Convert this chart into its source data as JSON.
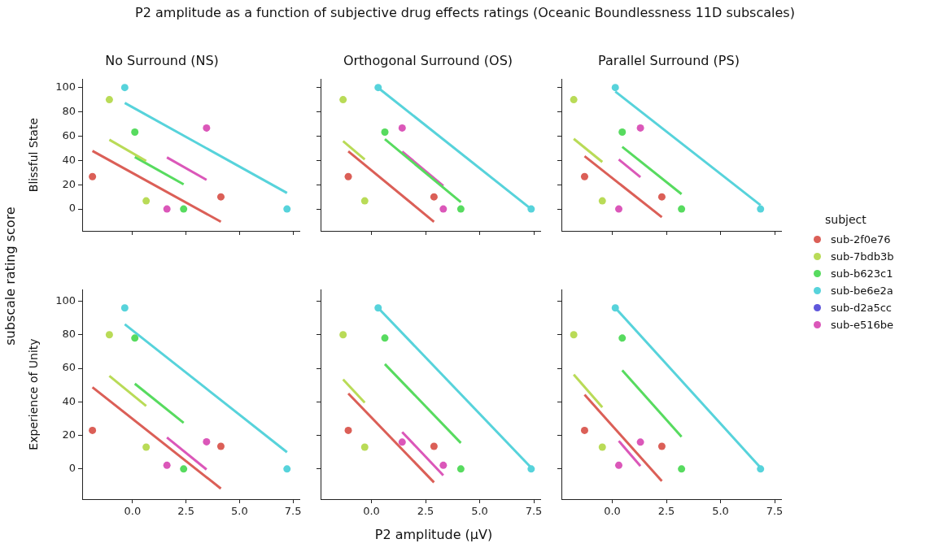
{
  "chart_data": [
    {
      "type": "scatter",
      "title": "No Surround (NS)",
      "ylabel": "Blissful State",
      "annotations": [
        "subscale rating score"
      ],
      "xlim": [
        -2.35,
        7.8
      ],
      "ylim": [
        -18,
        107
      ],
      "xticks": [
        0,
        2.5,
        5,
        7.5
      ],
      "yticks": [
        0,
        20,
        40,
        60,
        80,
        100
      ],
      "tick_labels": "y",
      "grid": false,
      "marker": "circle",
      "series": [
        {
          "color": "#db5f57",
          "x": [
            -1.87,
            4.13
          ],
          "values": [
            26.7,
            10
          ]
        },
        {
          "color": "#b9db57",
          "x": [
            -1.08,
            0.64
          ],
          "values": [
            90,
            6.7
          ]
        },
        {
          "color": "#57db5f",
          "x": [
            0.11,
            2.39
          ],
          "values": [
            63.3,
            0
          ]
        },
        {
          "color": "#57d3db",
          "x": [
            -0.36,
            7.22
          ],
          "values": [
            100,
            0
          ]
        },
        {
          "color": "#db57b9",
          "x": [
            1.61,
            3.46
          ],
          "values": [
            0,
            66.7
          ]
        },
        {
          "type": "line",
          "marker": "none",
          "color": "#db5f57",
          "x": [
            -1.87,
            4.13
          ],
          "values": [
            47.8,
            -10.5
          ]
        },
        {
          "type": "line",
          "marker": "none",
          "color": "#b9db57",
          "x": [
            -1.08,
            0.64
          ],
          "values": [
            57,
            39.5
          ]
        },
        {
          "type": "line",
          "marker": "none",
          "color": "#57db5f",
          "x": [
            0.11,
            2.39
          ],
          "values": [
            42.8,
            20.3
          ]
        },
        {
          "type": "line",
          "marker": "none",
          "color": "#57d3db",
          "x": [
            -0.36,
            7.22
          ],
          "values": [
            87.3,
            13.2
          ]
        },
        {
          "type": "line",
          "marker": "none",
          "color": "#db57b9",
          "x": [
            1.61,
            3.46
          ],
          "values": [
            42.5,
            24
          ]
        }
      ]
    },
    {
      "type": "scatter",
      "title": "Orthogonal Surround (OS)",
      "annotations": [
        "P2 amplitude as a function of subjective drug effects ratings (Oceanic Boundlessness 11D subscales)"
      ],
      "xlim": [
        -2.35,
        7.8
      ],
      "ylim": [
        -18,
        107
      ],
      "xticks": [
        0,
        2.5,
        5,
        7.5
      ],
      "yticks": [
        0,
        20,
        40,
        60,
        80,
        100
      ],
      "tick_labels": false,
      "grid": false,
      "marker": "circle",
      "series": [
        {
          "color": "#db5f57",
          "x": [
            -1.07,
            2.89
          ],
          "values": [
            26.7,
            10
          ]
        },
        {
          "color": "#b9db57",
          "x": [
            -1.31,
            -0.31
          ],
          "values": [
            90,
            6.7
          ]
        },
        {
          "color": "#57db5f",
          "x": [
            0.62,
            4.13
          ],
          "values": [
            63.3,
            0
          ]
        },
        {
          "color": "#57d3db",
          "x": [
            0.31,
            7.38
          ],
          "values": [
            100,
            0
          ]
        },
        {
          "color": "#db57b9",
          "x": [
            1.42,
            3.32
          ],
          "values": [
            66.7,
            0
          ]
        },
        {
          "type": "line",
          "marker": "none",
          "color": "#db5f57",
          "x": [
            -1.07,
            2.89
          ],
          "values": [
            47.5,
            -10.5
          ]
        },
        {
          "type": "line",
          "marker": "none",
          "color": "#b9db57",
          "x": [
            -1.31,
            -0.31
          ],
          "values": [
            55.8,
            40.8
          ]
        },
        {
          "type": "line",
          "marker": "none",
          "color": "#57db5f",
          "x": [
            0.62,
            4.13
          ],
          "values": [
            57.5,
            5.7
          ]
        },
        {
          "type": "line",
          "marker": "none",
          "color": "#57d3db",
          "x": [
            0.31,
            7.38
          ],
          "values": [
            99.8,
            0
          ]
        },
        {
          "type": "line",
          "marker": "none",
          "color": "#db57b9",
          "x": [
            1.42,
            3.32
          ],
          "values": [
            47.3,
            19
          ]
        }
      ]
    },
    {
      "type": "scatter",
      "title": "Parallel Surround (PS)",
      "legend_title": "subject",
      "legend": "right",
      "xlim": [
        -2.35,
        7.8
      ],
      "ylim": [
        -18,
        107
      ],
      "xticks": [
        0,
        2.5,
        5,
        7.5
      ],
      "yticks": [
        0,
        20,
        40,
        60,
        80,
        100
      ],
      "tick_labels": false,
      "grid": false,
      "marker": "circle",
      "series": [
        {
          "name": "sub-2f0e76",
          "color": "#db5f57",
          "x": [
            -1.28,
            2.29
          ],
          "values": [
            26.7,
            10
          ]
        },
        {
          "name": "sub-7bdb3b",
          "color": "#b9db57",
          "x": [
            -1.78,
            -0.46
          ],
          "values": [
            90,
            6.7
          ]
        },
        {
          "name": "sub-b623c1",
          "color": "#57db5f",
          "x": [
            0.46,
            3.2
          ],
          "values": [
            63.3,
            0
          ]
        },
        {
          "name": "sub-be6e2a",
          "color": "#57d3db",
          "x": [
            0.14,
            6.85
          ],
          "values": [
            100,
            0
          ]
        },
        {
          "name": "sub-d2a5cc",
          "color": "#5f57db"
        },
        {
          "name": "sub-e516be",
          "color": "#db57b9",
          "x": [
            1.3,
            0.3
          ],
          "values": [
            66.7,
            0
          ]
        },
        {
          "type": "line",
          "marker": "none",
          "color": "#db5f57",
          "x": [
            -1.28,
            2.29
          ],
          "values": [
            43.5,
            -6.7
          ]
        },
        {
          "type": "line",
          "marker": "none",
          "color": "#b9db57",
          "x": [
            -1.78,
            -0.46
          ],
          "values": [
            57.8,
            38.7
          ]
        },
        {
          "type": "line",
          "marker": "none",
          "color": "#57db5f",
          "x": [
            0.46,
            3.2
          ],
          "values": [
            51.2,
            12.3
          ]
        },
        {
          "type": "line",
          "marker": "none",
          "color": "#57d3db",
          "x": [
            0.14,
            6.85
          ],
          "values": [
            96.7,
            3.2
          ]
        },
        {
          "type": "line",
          "marker": "none",
          "color": "#db57b9",
          "x": [
            0.3,
            1.3
          ],
          "values": [
            40.8,
            26.2
          ]
        }
      ]
    },
    {
      "type": "scatter",
      "ylabel": "Experience of Unity",
      "xlim": [
        -2.35,
        7.8
      ],
      "ylim": [
        -18,
        107
      ],
      "xticks": [
        {
          "value": 0,
          "label": "0.0"
        },
        {
          "value": 2.5,
          "label": "2.5"
        },
        {
          "value": 5,
          "label": "5.0"
        },
        {
          "value": 7.5,
          "label": "7.5"
        }
      ],
      "yticks": [
        0,
        20,
        40,
        60,
        80,
        100
      ],
      "grid": false,
      "marker": "circle",
      "series": [
        {
          "color": "#db5f57",
          "x": [
            -1.87,
            4.13
          ],
          "values": [
            23,
            13.5
          ]
        },
        {
          "color": "#b9db57",
          "x": [
            -1.08,
            0.64
          ],
          "values": [
            80,
            13
          ]
        },
        {
          "color": "#57db5f",
          "x": [
            0.11,
            2.39
          ],
          "values": [
            78,
            0
          ]
        },
        {
          "color": "#57d3db",
          "x": [
            -0.36,
            7.22
          ],
          "values": [
            96,
            0
          ]
        },
        {
          "color": "#db57b9",
          "x": [
            1.61,
            3.46
          ],
          "values": [
            2.2,
            16.2
          ]
        },
        {
          "type": "line",
          "marker": "none",
          "color": "#db5f57",
          "x": [
            -1.87,
            4.13
          ],
          "values": [
            48.7,
            -11.7
          ]
        },
        {
          "type": "line",
          "marker": "none",
          "color": "#b9db57",
          "x": [
            -1.08,
            0.64
          ],
          "values": [
            55.5,
            37.5
          ]
        },
        {
          "type": "line",
          "marker": "none",
          "color": "#57db5f",
          "x": [
            0.11,
            2.39
          ],
          "values": [
            50.8,
            27.5
          ]
        },
        {
          "type": "line",
          "marker": "none",
          "color": "#57d3db",
          "x": [
            -0.36,
            7.22
          ],
          "values": [
            86.2,
            10
          ]
        },
        {
          "type": "line",
          "marker": "none",
          "color": "#db57b9",
          "x": [
            1.61,
            3.46
          ],
          "values": [
            18.8,
            -0.3
          ]
        }
      ]
    },
    {
      "type": "scatter",
      "xlabel": "P2 amplitude (µV)",
      "xlim": [
        -2.35,
        7.8
      ],
      "ylim": [
        -18,
        107
      ],
      "xticks": [
        {
          "value": 0,
          "label": "0.0"
        },
        {
          "value": 2.5,
          "label": "2.5"
        },
        {
          "value": 5,
          "label": "5.0"
        },
        {
          "value": 7.5,
          "label": "7.5"
        }
      ],
      "yticks": [
        0,
        20,
        40,
        60,
        80,
        100
      ],
      "tick_labels": "x",
      "grid": false,
      "marker": "circle",
      "series": [
        {
          "color": "#db5f57",
          "x": [
            -1.07,
            2.89
          ],
          "values": [
            23,
            13.5
          ]
        },
        {
          "color": "#b9db57",
          "x": [
            -1.31,
            -0.31
          ],
          "values": [
            80,
            13
          ]
        },
        {
          "color": "#57db5f",
          "x": [
            0.62,
            4.13
          ],
          "values": [
            78,
            0
          ]
        },
        {
          "color": "#57d3db",
          "x": [
            0.31,
            7.38
          ],
          "values": [
            96,
            0
          ]
        },
        {
          "color": "#db57b9",
          "x": [
            1.42,
            3.32
          ],
          "values": [
            16,
            2.2
          ]
        },
        {
          "type": "line",
          "marker": "none",
          "color": "#db5f57",
          "x": [
            -1.07,
            2.89
          ],
          "values": [
            45,
            -8
          ]
        },
        {
          "type": "line",
          "marker": "none",
          "color": "#b9db57",
          "x": [
            -1.31,
            -0.31
          ],
          "values": [
            53.3,
            39.5
          ]
        },
        {
          "type": "line",
          "marker": "none",
          "color": "#57db5f",
          "x": [
            0.62,
            4.13
          ],
          "values": [
            62.5,
            15.5
          ]
        },
        {
          "type": "line",
          "marker": "none",
          "color": "#57d3db",
          "x": [
            0.31,
            7.38
          ],
          "values": [
            96,
            0.8
          ]
        },
        {
          "type": "line",
          "marker": "none",
          "color": "#db57b9",
          "x": [
            1.42,
            3.32
          ],
          "values": [
            22,
            -3.8
          ]
        }
      ]
    },
    {
      "type": "scatter",
      "xlim": [
        -2.35,
        7.8
      ],
      "ylim": [
        -18,
        107
      ],
      "xticks": [
        {
          "value": 0,
          "label": "0.0"
        },
        {
          "value": 2.5,
          "label": "2.5"
        },
        {
          "value": 5,
          "label": "5.0"
        },
        {
          "value": 7.5,
          "label": "7.5"
        }
      ],
      "yticks": [
        0,
        20,
        40,
        60,
        80,
        100
      ],
      "tick_labels": "x",
      "grid": false,
      "marker": "circle",
      "series": [
        {
          "color": "#db5f57",
          "x": [
            -1.28,
            2.29
          ],
          "values": [
            23,
            13.5
          ]
        },
        {
          "color": "#b9db57",
          "x": [
            -1.78,
            -0.46
          ],
          "values": [
            80,
            13
          ]
        },
        {
          "color": "#57db5f",
          "x": [
            0.46,
            3.2
          ],
          "values": [
            78,
            0
          ]
        },
        {
          "color": "#57d3db",
          "x": [
            0.14,
            6.85
          ],
          "values": [
            96,
            0
          ]
        },
        {
          "color": "#db57b9",
          "x": [
            1.3,
            0.3
          ],
          "values": [
            16,
            2.2
          ]
        },
        {
          "type": "line",
          "marker": "none",
          "color": "#db5f57",
          "x": [
            -1.28,
            2.29
          ],
          "values": [
            44.2,
            -7.2
          ]
        },
        {
          "type": "line",
          "marker": "none",
          "color": "#b9db57",
          "x": [
            -1.78,
            -0.46
          ],
          "values": [
            56.3,
            36.7
          ]
        },
        {
          "type": "line",
          "marker": "none",
          "color": "#57db5f",
          "x": [
            0.46,
            3.2
          ],
          "values": [
            58.8,
            19.2
          ]
        },
        {
          "type": "line",
          "marker": "none",
          "color": "#57d3db",
          "x": [
            0.14,
            6.85
          ],
          "values": [
            96,
            0.8
          ]
        },
        {
          "type": "line",
          "marker": "none",
          "color": "#db57b9",
          "x": [
            0.3,
            1.3
          ],
          "values": [
            16.7,
            1.7
          ]
        }
      ]
    }
  ]
}
